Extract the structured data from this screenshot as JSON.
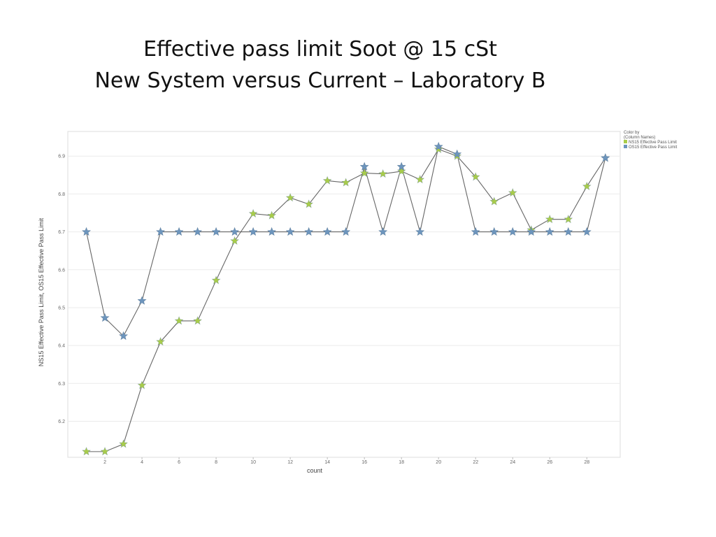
{
  "slide": {
    "title_line1": "Effective pass limit Soot @ 15 cSt",
    "title_line2": "New System versus Current – Laboratory B"
  },
  "chart_data": {
    "type": "line",
    "xlabel": "count",
    "ylabel": "NS15 Effective Pass Limit, OS15 Effective Pass Limit",
    "xlim": [
      0,
      29.8
    ],
    "ylim": [
      6.105,
      6.965
    ],
    "xticks": [
      2,
      4,
      6,
      8,
      10,
      12,
      14,
      16,
      18,
      20,
      22,
      24,
      26,
      28
    ],
    "yticks": [
      6.2,
      6.3,
      6.4,
      6.5,
      6.6,
      6.7,
      6.8,
      6.9
    ],
    "grid": true,
    "legend": {
      "title_line1": "Color by",
      "title_line2": "(Column Names)",
      "placement": "top-right"
    },
    "x": [
      1,
      2,
      3,
      4,
      5,
      6,
      7,
      8,
      9,
      10,
      11,
      12,
      13,
      14,
      15,
      16,
      17,
      18,
      19,
      20,
      21,
      22,
      23,
      24,
      25,
      26,
      27,
      28,
      29
    ],
    "series": [
      {
        "name": "NS15 Effective Pass Limit",
        "color": "#a8cc4a",
        "values": [
          6.12,
          6.12,
          6.14,
          6.295,
          6.41,
          6.465,
          6.465,
          6.572,
          6.676,
          6.748,
          6.743,
          6.79,
          6.773,
          6.835,
          6.83,
          6.855,
          6.853,
          6.86,
          6.838,
          6.918,
          6.9,
          6.845,
          6.78,
          6.803,
          6.705,
          6.733,
          6.733,
          6.82,
          6.895
        ]
      },
      {
        "name": "OS15 Effective Pass Limit",
        "color": "#6d95bd",
        "values": [
          6.7,
          6.473,
          6.425,
          6.518,
          6.7,
          6.7,
          6.7,
          6.7,
          6.7,
          6.7,
          6.7,
          6.7,
          6.7,
          6.7,
          6.7,
          6.872,
          6.7,
          6.872,
          6.7,
          6.925,
          6.905,
          6.7,
          6.7,
          6.7,
          6.7,
          6.7,
          6.7,
          6.7,
          6.895
        ]
      }
    ]
  }
}
